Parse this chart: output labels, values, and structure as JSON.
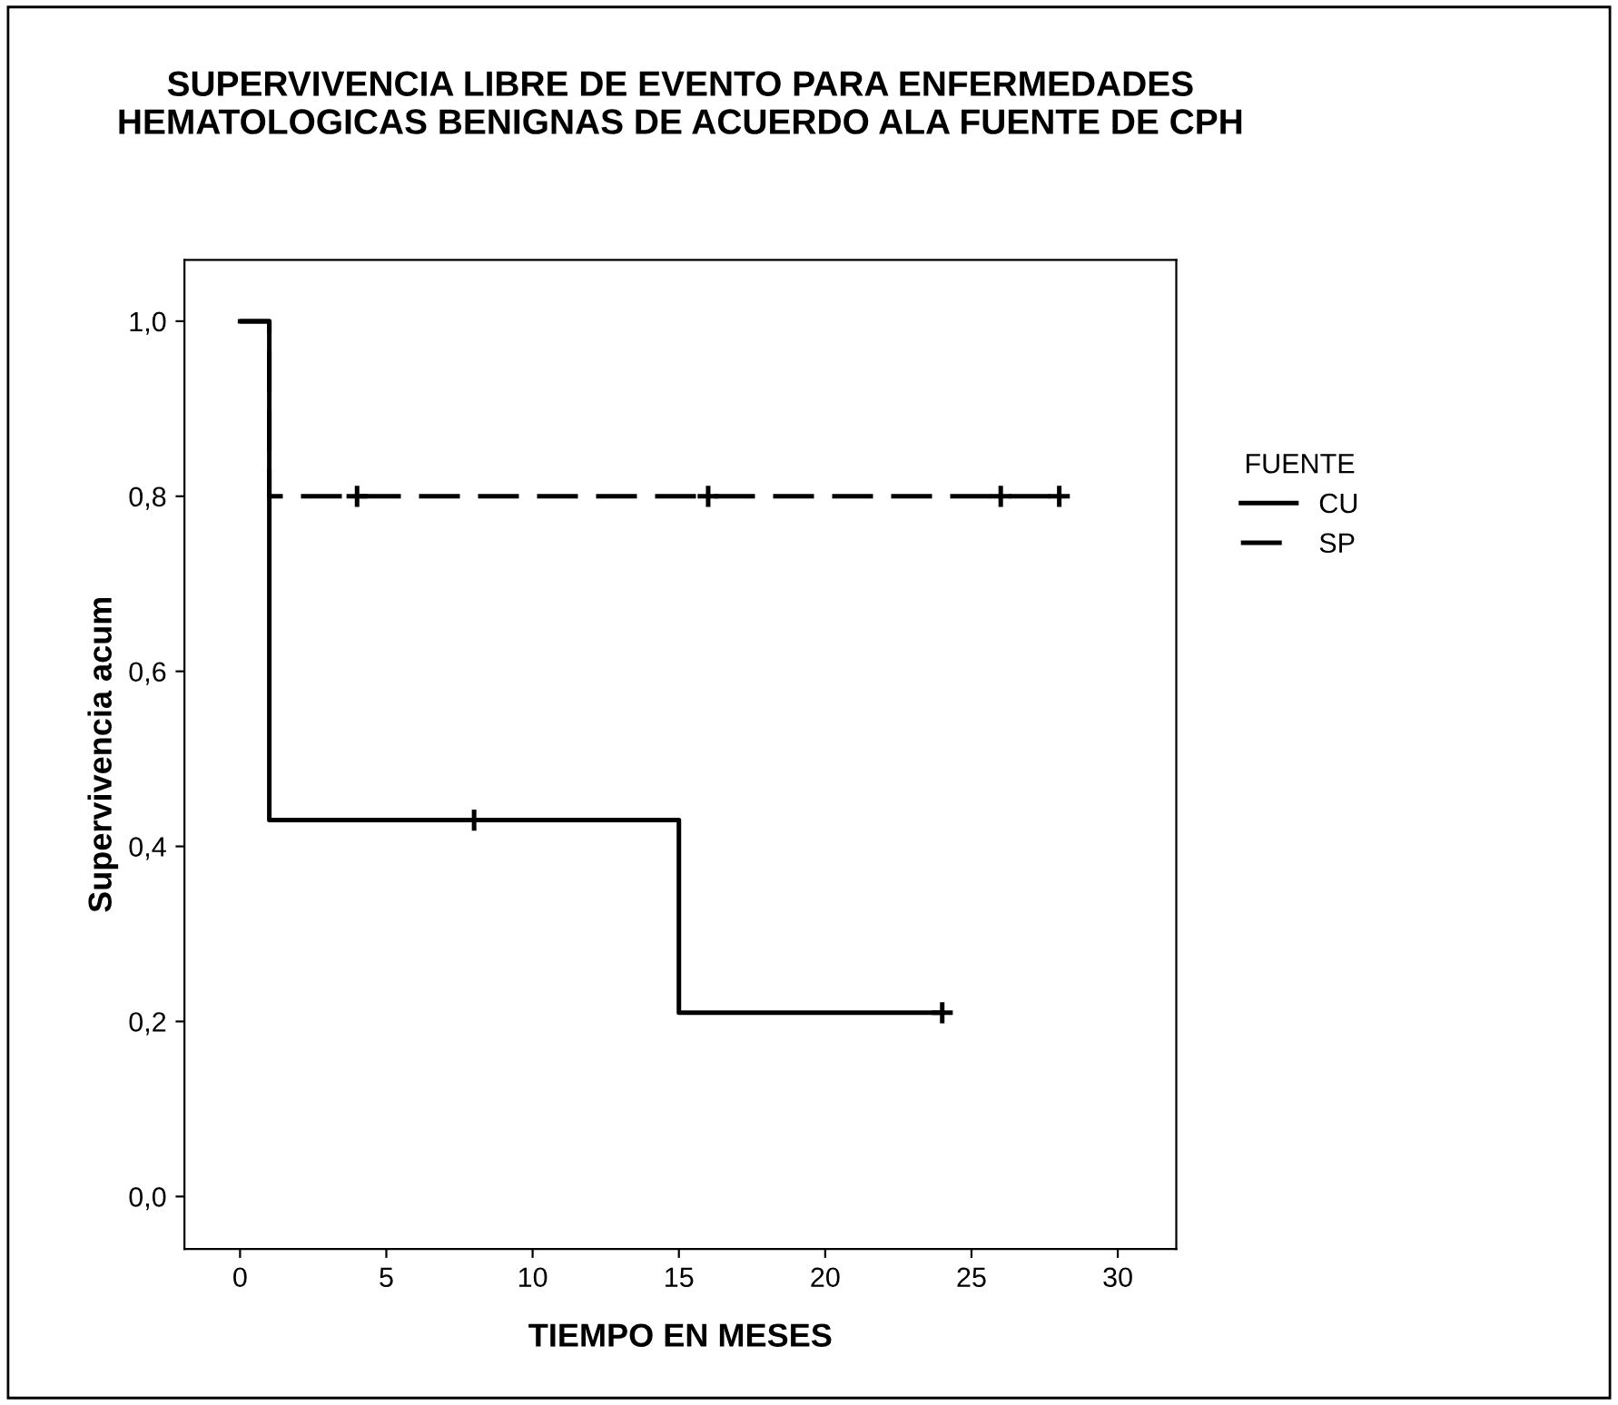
{
  "chart_data": {
    "type": "step",
    "title": "SUPERVIVENCIA LIBRE DE EVENTO PARA ENFERMEDADES\nHEMATOLOGICAS BENIGNAS DE ACUERDO ALA FUENTE DE CPH",
    "xlabel": "TIEMPO EN MESES",
    "ylabel": "Supervivencia acum",
    "legend_title": "FUENTE",
    "series": [
      {
        "name": "CU",
        "color": "#000000",
        "line_style": "solid",
        "x": [
          0,
          1,
          15,
          24
        ],
        "values": [
          1.0,
          0.43,
          0.21,
          0.21
        ]
      },
      {
        "name": "SP",
        "color": "#000000",
        "line_style": "dashed",
        "x": [
          0,
          1,
          28
        ],
        "values": [
          1.0,
          0.8,
          0.8
        ]
      },
      {
        "type": "scatter",
        "color": "#000000",
        "marker": "cross",
        "x": [
          8,
          24
        ],
        "values": [
          0.43,
          0.21
        ]
      },
      {
        "type": "scatter",
        "color": "#000000",
        "marker": "cross",
        "x": [
          4,
          16,
          26,
          28
        ],
        "values": [
          0.8,
          0.8,
          0.8,
          0.8
        ]
      }
    ],
    "xlim": [
      -1.9,
      32
    ],
    "xticks": [
      0,
      5,
      10,
      15,
      20,
      25,
      30
    ],
    "ylim": [
      -0.06,
      1.07
    ],
    "yticks": [
      {
        "value": 0.0,
        "label": "0,0"
      },
      {
        "value": 0.2,
        "label": "0,2"
      },
      {
        "value": 0.4,
        "label": "0,4"
      },
      {
        "value": 0.6,
        "label": "0,6"
      },
      {
        "value": 0.8,
        "label": "0,8"
      },
      {
        "value": 1.0,
        "label": "1,0"
      }
    ],
    "grid": false,
    "legend": "right"
  }
}
